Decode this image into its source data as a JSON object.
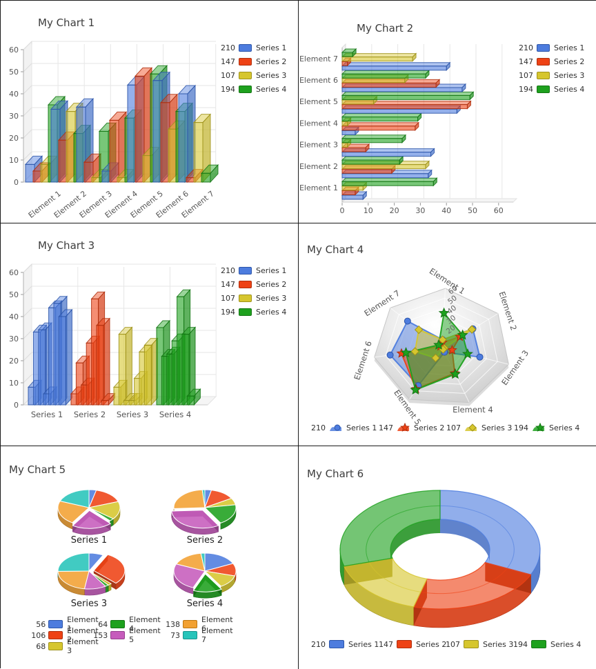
{
  "colors": {
    "series": [
      "#4D7CDE",
      "#EE4215",
      "#D6C62E",
      "#1EA11E"
    ],
    "series_dark": [
      "#2C55A9",
      "#AF2F0D",
      "#9E921B",
      "#147514"
    ],
    "elements": [
      "#4D7CDE",
      "#EE4215",
      "#D6C62E",
      "#1EA11E",
      "#C65CBC",
      "#F2A132",
      "#27C4BA"
    ],
    "elements_dark": [
      "#2C55A9",
      "#AF2F0D",
      "#9E921B",
      "#147514",
      "#94408C",
      "#BE7710",
      "#17948C"
    ],
    "grid": "#e6e6e6",
    "wall": "#f2f2f2",
    "axis": "#b0b0b0",
    "title_text": "#3c3c3c",
    "label_text": "#555555",
    "legend_text": "#2e2e2e"
  },
  "categories": [
    "Element 1",
    "Element 2",
    "Element 3",
    "Element 4",
    "Element 5",
    "Element 6",
    "Element 7"
  ],
  "series_names": [
    "Series 1",
    "Series 2",
    "Series 3",
    "Series 4"
  ],
  "chart_data": [
    {
      "type": "bar",
      "variant": "3d-column-grouped-by-category",
      "title": "My Chart 1",
      "categories": [
        "Element 1",
        "Element 2",
        "Element 3",
        "Element 4",
        "Element 5",
        "Element 6",
        "Element 7"
      ],
      "series": [
        {
          "name": "Series 1",
          "legend_value": 210,
          "values": [
            8,
            33,
            34,
            5,
            44,
            46,
            40
          ]
        },
        {
          "name": "Series 2",
          "legend_value": 147,
          "values": [
            5,
            19,
            9,
            28,
            48,
            36,
            2
          ]
        },
        {
          "name": "Series 3",
          "legend_value": 107,
          "values": [
            8,
            32,
            2,
            2,
            12,
            24,
            27
          ]
        },
        {
          "name": "Series 4",
          "legend_value": 194,
          "values": [
            35,
            22,
            23,
            29,
            49,
            32,
            4
          ]
        }
      ],
      "ylim": [
        0,
        60
      ],
      "yticks": [
        0,
        10,
        20,
        30,
        40,
        50,
        60
      ],
      "grid": true,
      "legend_position": "right-top"
    },
    {
      "type": "bar",
      "variant": "3d-horizontal-bar",
      "title": "My Chart 2",
      "categories": [
        "Element 1",
        "Element 2",
        "Element 3",
        "Element 4",
        "Element 5",
        "Element 6",
        "Element 7"
      ],
      "series": [
        {
          "name": "Series 1",
          "legend_value": 210,
          "values": [
            8,
            33,
            34,
            5,
            44,
            46,
            40
          ]
        },
        {
          "name": "Series 2",
          "legend_value": 147,
          "values": [
            5,
            19,
            9,
            28,
            48,
            36,
            2
          ]
        },
        {
          "name": "Series 3",
          "legend_value": 107,
          "values": [
            8,
            32,
            2,
            2,
            12,
            24,
            27
          ]
        },
        {
          "name": "Series 4",
          "legend_value": 194,
          "values": [
            35,
            22,
            23,
            29,
            49,
            32,
            4
          ]
        }
      ],
      "xlim": [
        0,
        60
      ],
      "xticks": [
        0,
        10,
        20,
        30,
        40,
        50,
        60
      ],
      "grid": true,
      "legend_position": "right-top"
    },
    {
      "type": "bar",
      "variant": "3d-column-grouped-by-series",
      "title": "My Chart 3",
      "group_labels": [
        "Series 1",
        "Series 2",
        "Series 3",
        "Series 4"
      ],
      "series": [
        {
          "name": "Series 1",
          "legend_value": 210,
          "values": [
            8,
            33,
            34,
            5,
            44,
            46,
            40
          ]
        },
        {
          "name": "Series 2",
          "legend_value": 147,
          "values": [
            5,
            19,
            9,
            28,
            48,
            36,
            2
          ]
        },
        {
          "name": "Series 3",
          "legend_value": 107,
          "values": [
            8,
            32,
            2,
            2,
            12,
            24,
            27
          ]
        },
        {
          "name": "Series 4",
          "legend_value": 194,
          "values": [
            35,
            22,
            23,
            29,
            49,
            32,
            4
          ]
        }
      ],
      "ylim": [
        0,
        60
      ],
      "yticks": [
        0,
        10,
        20,
        30,
        40,
        50,
        60
      ],
      "grid": true,
      "legend_position": "right-top"
    },
    {
      "type": "radar",
      "variant": "3d-tilted",
      "title": "My Chart 4",
      "axes": [
        "Element 1",
        "Element 2",
        "Element 3",
        "Element 4",
        "Element 5",
        "Element 6",
        "Element 7"
      ],
      "rlim": [
        0,
        60
      ],
      "rticks": [
        20,
        30,
        40,
        50,
        60
      ],
      "series": [
        {
          "name": "Series 1",
          "legend_value": 210,
          "marker": "circle",
          "values": [
            8,
            33,
            34,
            5,
            44,
            46,
            40
          ]
        },
        {
          "name": "Series 2",
          "legend_value": 147,
          "marker": "star",
          "values": [
            5,
            19,
            9,
            28,
            48,
            36,
            2
          ]
        },
        {
          "name": "Series 3",
          "legend_value": 107,
          "marker": "diamond",
          "values": [
            8,
            32,
            2,
            2,
            12,
            24,
            27
          ]
        },
        {
          "name": "Series 4",
          "legend_value": 194,
          "marker": "star",
          "values": [
            35,
            22,
            23,
            29,
            49,
            32,
            4
          ]
        }
      ],
      "legend_position": "bottom"
    },
    {
      "type": "pie",
      "variant": "3d-pie-small-multiples",
      "title": "My Chart 5",
      "slice_labels": [
        "Element 1",
        "Element 2",
        "Element 3",
        "Element 4",
        "Element 5",
        "Element 6",
        "Element 7"
      ],
      "pies": [
        {
          "label": "Series 1",
          "values": [
            8,
            33,
            34,
            5,
            44,
            46,
            40
          ],
          "exploded_slice": 4
        },
        {
          "label": "Series 2",
          "values": [
            5,
            19,
            9,
            28,
            48,
            36,
            2
          ],
          "exploded_slice": 4
        },
        {
          "label": "Series 3",
          "values": [
            8,
            32,
            2,
            2,
            12,
            24,
            27
          ],
          "exploded_slice": 1
        },
        {
          "label": "Series 4",
          "values": [
            35,
            22,
            23,
            29,
            49,
            32,
            4
          ],
          "exploded_slice": 3
        }
      ],
      "start_angle_deg": 0,
      "direction": "clockwise",
      "legend": [
        {
          "label": "Element 1",
          "value": 56
        },
        {
          "label": "Element 2",
          "value": 106
        },
        {
          "label": "Element 3",
          "value": 68
        },
        {
          "label": "Element 4",
          "value": 64
        },
        {
          "label": "Element 5",
          "value": 153
        },
        {
          "label": "Element 6",
          "value": 138
        },
        {
          "label": "Element 7",
          "value": 73
        }
      ],
      "legend_position": "bottom-left-3col"
    },
    {
      "type": "pie",
      "variant": "3d-donut",
      "title": "My Chart 6",
      "labels": [
        "Series 1",
        "Series 2",
        "Series 3",
        "Series 4"
      ],
      "values": [
        210,
        147,
        107,
        194
      ],
      "start_angle_deg": 0,
      "direction": "clockwise",
      "legend": [
        {
          "label": "Series 1",
          "value": 210
        },
        {
          "label": "Series 2",
          "value": 147
        },
        {
          "label": "Series 3",
          "value": 107
        },
        {
          "label": "Series 4",
          "value": 194
        }
      ],
      "legend_position": "bottom"
    }
  ]
}
